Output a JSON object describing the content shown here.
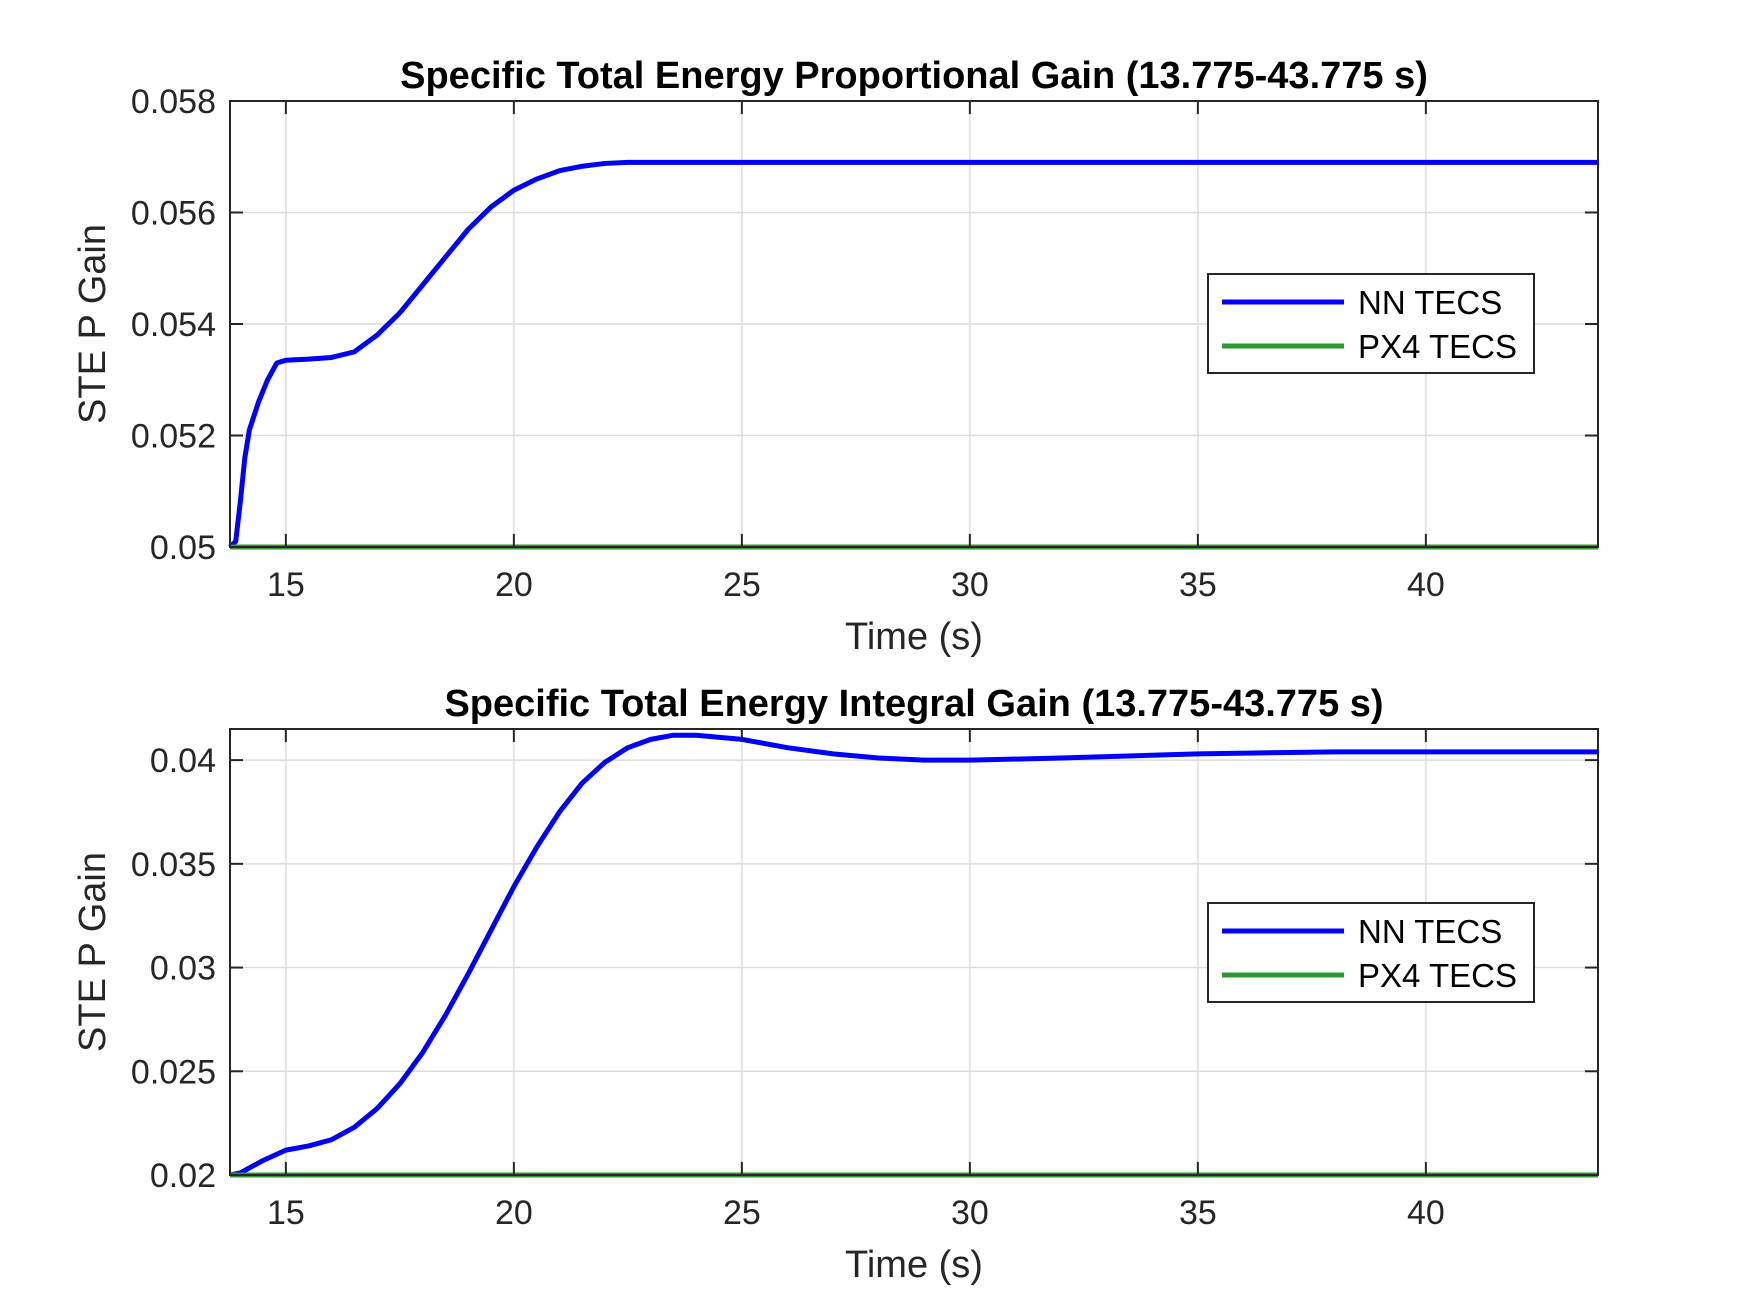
{
  "chart_data": [
    {
      "type": "line",
      "title": "Specific Total Energy Proportional Gain (13.775-43.775 s)",
      "xlabel": "Time (s)",
      "ylabel": "STE P Gain",
      "xlim": [
        13.775,
        43.775
      ],
      "ylim": [
        0.05,
        0.058
      ],
      "xticks": [
        15,
        20,
        25,
        30,
        35,
        40
      ],
      "xtick_labels": [
        "15",
        "20",
        "25",
        "30",
        "35",
        "40"
      ],
      "yticks": [
        0.05,
        0.052,
        0.054,
        0.056,
        0.058
      ],
      "ytick_labels": [
        "0.05",
        "0.052",
        "0.054",
        "0.056",
        "0.058"
      ],
      "grid": true,
      "legend_position": "right",
      "series": [
        {
          "name": "NN TECS",
          "color": "#0000ff",
          "x": [
            13.775,
            13.9,
            14.0,
            14.1,
            14.2,
            14.4,
            14.6,
            14.8,
            15.0,
            15.5,
            16.0,
            16.5,
            17.0,
            17.5,
            18.0,
            18.5,
            19.0,
            19.5,
            20.0,
            20.5,
            21.0,
            21.5,
            22.0,
            22.5,
            23.0,
            24.0,
            25.0,
            30.0,
            35.0,
            40.0,
            43.775
          ],
          "y": [
            0.05,
            0.0501,
            0.0508,
            0.0516,
            0.0521,
            0.0526,
            0.053,
            0.0533,
            0.05335,
            0.05337,
            0.0534,
            0.0535,
            0.0538,
            0.0542,
            0.0547,
            0.0552,
            0.0557,
            0.0561,
            0.0564,
            0.0566,
            0.05675,
            0.05683,
            0.05688,
            0.0569,
            0.0569,
            0.0569,
            0.0569,
            0.0569,
            0.0569,
            0.0569,
            0.0569
          ]
        },
        {
          "name": "PX4 TECS",
          "color": "#2e9a2e",
          "x": [
            13.775,
            43.775
          ],
          "y": [
            0.05,
            0.05
          ]
        }
      ]
    },
    {
      "type": "line",
      "title": "Specific Total Energy Integral Gain (13.775-43.775 s)",
      "xlabel": "Time (s)",
      "ylabel": "STE P Gain",
      "xlim": [
        13.775,
        43.775
      ],
      "ylim": [
        0.02,
        0.0415
      ],
      "xticks": [
        15,
        20,
        25,
        30,
        35,
        40
      ],
      "xtick_labels": [
        "15",
        "20",
        "25",
        "30",
        "35",
        "40"
      ],
      "yticks": [
        0.02,
        0.025,
        0.03,
        0.035,
        0.04
      ],
      "ytick_labels": [
        "0.02",
        "0.025",
        "0.03",
        "0.035",
        "0.04"
      ],
      "grid": true,
      "legend_position": "right",
      "series": [
        {
          "name": "NN TECS",
          "color": "#0000ff",
          "x": [
            13.775,
            14.0,
            14.5,
            15.0,
            15.5,
            16.0,
            16.5,
            17.0,
            17.5,
            18.0,
            18.5,
            19.0,
            19.5,
            20.0,
            20.5,
            21.0,
            21.5,
            22.0,
            22.5,
            23.0,
            23.5,
            24.0,
            25.0,
            26.0,
            27.0,
            28.0,
            29.0,
            30.0,
            32.0,
            35.0,
            38.0,
            40.0,
            43.775
          ],
          "y": [
            0.02,
            0.0201,
            0.0207,
            0.0212,
            0.0214,
            0.0217,
            0.0223,
            0.0232,
            0.0244,
            0.0259,
            0.0277,
            0.0297,
            0.0318,
            0.0339,
            0.0358,
            0.0375,
            0.0389,
            0.0399,
            0.0406,
            0.041,
            0.0412,
            0.0412,
            0.041,
            0.0406,
            0.0403,
            0.0401,
            0.04,
            0.04,
            0.0401,
            0.0403,
            0.0404,
            0.0404,
            0.0404
          ]
        },
        {
          "name": "PX4 TECS",
          "color": "#2e9a2e",
          "x": [
            13.775,
            43.775
          ],
          "y": [
            0.02,
            0.02
          ]
        }
      ]
    }
  ]
}
